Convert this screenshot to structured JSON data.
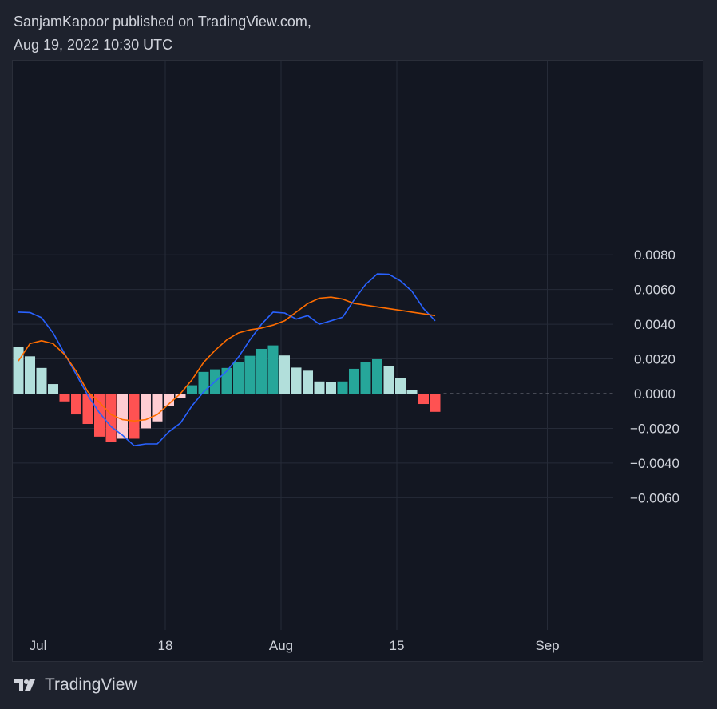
{
  "header": {
    "line1": "SanjamKapoor published on TradingView.com,",
    "line2": "Aug 19, 2022 10:30 UTC"
  },
  "footer": {
    "brand": "TradingView",
    "logo_icon": "tradingview-logo-icon"
  },
  "colors": {
    "background": "#1e222d",
    "panel": "#131722",
    "grid": "#262b38",
    "text": "#d1d4dc",
    "macd_line": "#2962ff",
    "signal_line": "#ff6d00",
    "hist_pos_strong": "#26a69a",
    "hist_pos_weak": "#b2dfdb",
    "hist_neg_strong": "#ff5252",
    "hist_neg_weak": "#ffcdd2",
    "zero_line": "#787b86"
  },
  "chart_data": {
    "type": "bar",
    "ylim": [
      -0.0074,
      0.008
    ],
    "yticks": [
      "0.0080",
      "0.0060",
      "0.0040",
      "0.0020",
      "0.0000",
      "−0.0020",
      "−0.0040",
      "−0.0060"
    ],
    "ytick_values": [
      0.008,
      0.006,
      0.004,
      0.002,
      0.0,
      -0.002,
      -0.004,
      -0.006
    ],
    "xticks": [
      {
        "label": "Jul",
        "index": 1
      },
      {
        "label": "18",
        "index": 12
      },
      {
        "label": "Aug",
        "index": 22
      },
      {
        "label": "15",
        "index": 32
      },
      {
        "label": "Sep",
        "index": 45
      }
    ],
    "x_count": 59,
    "histogram": [
      {
        "value": 0.0027,
        "color": "weak_pos"
      },
      {
        "value": 0.00215,
        "color": "weak_pos"
      },
      {
        "value": 0.00148,
        "color": "weak_pos"
      },
      {
        "value": 0.00055,
        "color": "weak_pos"
      },
      {
        "value": -0.00045,
        "color": "strong_neg"
      },
      {
        "value": -0.0012,
        "color": "strong_neg"
      },
      {
        "value": -0.00175,
        "color": "strong_neg"
      },
      {
        "value": -0.00248,
        "color": "strong_neg"
      },
      {
        "value": -0.0028,
        "color": "strong_neg"
      },
      {
        "value": -0.0026,
        "color": "weak_neg"
      },
      {
        "value": -0.0026,
        "color": "strong_neg"
      },
      {
        "value": -0.002,
        "color": "weak_neg"
      },
      {
        "value": -0.0016,
        "color": "weak_neg"
      },
      {
        "value": -0.00072,
        "color": "weak_neg"
      },
      {
        "value": -0.00025,
        "color": "weak_neg"
      },
      {
        "value": 0.00048,
        "color": "strong_pos"
      },
      {
        "value": 0.00125,
        "color": "strong_pos"
      },
      {
        "value": 0.0014,
        "color": "strong_pos"
      },
      {
        "value": 0.00148,
        "color": "strong_pos"
      },
      {
        "value": 0.0018,
        "color": "strong_pos"
      },
      {
        "value": 0.00218,
        "color": "strong_pos"
      },
      {
        "value": 0.00258,
        "color": "strong_pos"
      },
      {
        "value": 0.00278,
        "color": "strong_pos"
      },
      {
        "value": 0.0022,
        "color": "weak_pos"
      },
      {
        "value": 0.0015,
        "color": "weak_pos"
      },
      {
        "value": 0.00132,
        "color": "weak_pos"
      },
      {
        "value": 0.0007,
        "color": "weak_pos"
      },
      {
        "value": 0.00068,
        "color": "weak_pos"
      },
      {
        "value": 0.0007,
        "color": "strong_pos"
      },
      {
        "value": 0.00143,
        "color": "strong_pos"
      },
      {
        "value": 0.00182,
        "color": "strong_pos"
      },
      {
        "value": 0.00198,
        "color": "strong_pos"
      },
      {
        "value": 0.00158,
        "color": "weak_pos"
      },
      {
        "value": 0.00088,
        "color": "weak_pos"
      },
      {
        "value": 0.00022,
        "color": "weak_pos"
      },
      {
        "value": -0.0006,
        "color": "strong_neg"
      },
      {
        "value": -0.00105,
        "color": "strong_neg"
      }
    ],
    "series": [
      {
        "key": "macd",
        "color_key": "macd_line",
        "values": [
          0.0047,
          0.00468,
          0.00438,
          0.0035,
          0.0023,
          0.0011,
          -0.0001,
          -0.0011,
          -0.0019,
          -0.0024,
          -0.003,
          -0.0029,
          -0.0029,
          -0.0022,
          -0.0017,
          -0.0007,
          0.0001,
          0.0007,
          0.0013,
          0.0021,
          0.0031,
          0.004,
          0.0047,
          0.00465,
          0.0043,
          0.0045,
          0.004,
          0.0042,
          0.0044,
          0.0054,
          0.0063,
          0.0069,
          0.00688,
          0.0065,
          0.0059,
          0.0049,
          0.0042
        ]
      },
      {
        "key": "signal",
        "color_key": "signal_line",
        "values": [
          0.00188,
          0.00288,
          0.00305,
          0.00288,
          0.00225,
          0.00128,
          0.0001,
          -0.0005,
          -0.0012,
          -0.0015,
          -0.00158,
          -0.0015,
          -0.0012,
          -0.0006,
          0.0,
          0.0008,
          0.0018,
          0.0025,
          0.0031,
          0.0035,
          0.00368,
          0.00378,
          0.00395,
          0.0042,
          0.0047,
          0.0052,
          0.0055,
          0.00556,
          0.00545,
          0.0052,
          0.0051,
          0.005,
          0.0049,
          0.0048,
          0.0047,
          0.0046,
          0.0045
        ]
      }
    ],
    "grid": true
  }
}
